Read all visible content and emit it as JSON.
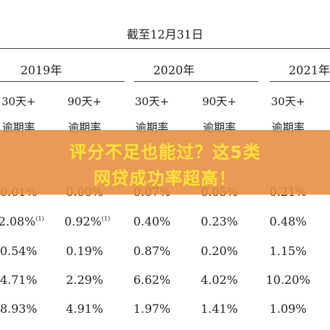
{
  "header": {
    "title": "截至12月31日"
  },
  "years": [
    "2019年",
    "2020年",
    "2021年"
  ],
  "columns": [
    {
      "l1": "30天+",
      "l2": "逾期率"
    },
    {
      "l1": "90天+",
      "l2": "逾期率"
    },
    {
      "l1": "30天+",
      "l2": "逾期率"
    },
    {
      "l1": "90天+",
      "l2": "逾期率"
    },
    {
      "l1": "30天+",
      "l2": "逾期率"
    }
  ],
  "rows": [
    [
      "0.01%",
      "0.00%",
      "0.07%",
      "0.05%",
      "0.21%"
    ],
    [
      "2.08%",
      "0.92%",
      "0.40%",
      "0.23%",
      "0.48%"
    ],
    [
      "0.54%",
      "0.19%",
      "0.87%",
      "0.20%",
      "1.15%"
    ],
    [
      "4.71%",
      "2.29%",
      "6.62%",
      "4.02%",
      "10.20%"
    ],
    [
      "8.93%",
      "4.91%",
      "1.97%",
      "1.41%",
      "1.09%"
    ]
  ],
  "footnotes": {
    "row1_col0": "(1)",
    "row1_col1": "(1)"
  },
  "banner": {
    "line1": "评分不足也能过？这5类",
    "line2": "网贷成功率超高！",
    "bg_color": "#e88c3c",
    "text_color": "#ffe23a"
  }
}
